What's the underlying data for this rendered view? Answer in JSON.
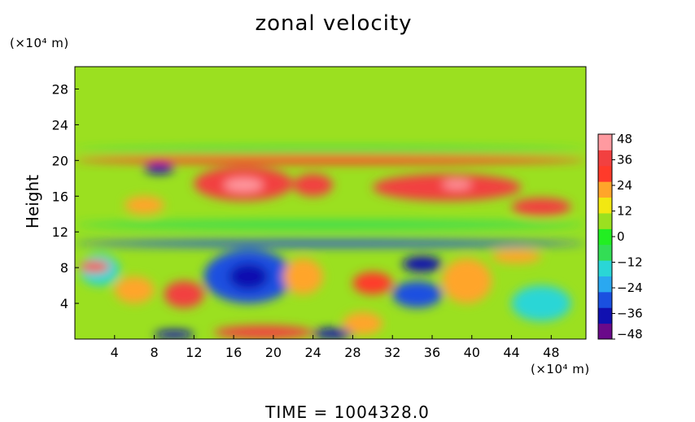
{
  "chart_data": {
    "type": "heatmap",
    "title": "zonal velocity",
    "ylabel": "Height",
    "x_unit": "(×10⁴ m)",
    "y_unit": "(×10⁴ m)",
    "footer": "TIME  =  1004328.0",
    "xlim": [
      0,
      51.5
    ],
    "ylim": [
      0,
      30.5
    ],
    "x_ticks": [
      4,
      8,
      12,
      16,
      20,
      24,
      28,
      32,
      36,
      40,
      44,
      48
    ],
    "y_ticks": [
      4,
      8,
      12,
      16,
      20,
      24,
      28
    ],
    "colorbar": {
      "min": -48,
      "max": 48,
      "tick_values": [
        48,
        36,
        24,
        12,
        0,
        -12,
        -24,
        -36,
        -48
      ],
      "tick_labels": [
        "48",
        "36",
        "24",
        "12",
        "0",
        "−12",
        "−24",
        "−36",
        "−48"
      ],
      "colors": [
        "#6a0a8a",
        "#1010b0",
        "#1a50e0",
        "#2aa8f0",
        "#2ad6d6",
        "#33dd55",
        "#22ee22",
        "#9be020",
        "#f2e811",
        "#ffa52a",
        "#ff3a2a",
        "#f24040",
        "#ff9aa0"
      ]
    },
    "features": [
      {
        "x": 0,
        "y": 20.8,
        "w": 51.5,
        "h": 0.7,
        "v": -10
      },
      {
        "x": 0,
        "y": 19.6,
        "w": 51.5,
        "h": 1.0,
        "v": 30
      },
      {
        "x": 0,
        "y": 10.3,
        "w": 51.5,
        "h": 0.8,
        "v": -28
      },
      {
        "x": 0,
        "y": 12.3,
        "w": 51.5,
        "h": 1.0,
        "v": -8
      },
      {
        "x": 12,
        "y": 15.5,
        "w": 10,
        "h": 3.8,
        "v": 38
      },
      {
        "x": 15,
        "y": 16.5,
        "w": 4,
        "h": 1.5,
        "v": 48
      },
      {
        "x": 22,
        "y": 16,
        "w": 4,
        "h": 2.5,
        "v": 36
      },
      {
        "x": 30,
        "y": 15.5,
        "w": 15,
        "h": 3,
        "v": 34
      },
      {
        "x": 37,
        "y": 16.8,
        "w": 3,
        "h": 1,
        "v": 44
      },
      {
        "x": 44,
        "y": 13.8,
        "w": 6,
        "h": 2,
        "v": 34
      },
      {
        "x": 7,
        "y": 18.5,
        "w": 3,
        "h": 1.2,
        "v": -40
      },
      {
        "x": 5,
        "y": 14,
        "w": 4,
        "h": 2,
        "v": 20
      },
      {
        "x": 13,
        "y": 4,
        "w": 9,
        "h": 6,
        "v": -30
      },
      {
        "x": 15.5,
        "y": 5.5,
        "w": 4,
        "h": 3,
        "v": -38
      },
      {
        "x": 9,
        "y": 3.5,
        "w": 4,
        "h": 3,
        "v": 36
      },
      {
        "x": 14,
        "y": 0,
        "w": 10,
        "h": 1.5,
        "v": 40
      },
      {
        "x": 24,
        "y": 0,
        "w": 4,
        "h": 1.2,
        "v": -40
      },
      {
        "x": 8,
        "y": 0,
        "w": 4,
        "h": 1,
        "v": -34
      },
      {
        "x": 32,
        "y": 3.5,
        "w": 5,
        "h": 3,
        "v": -28
      },
      {
        "x": 33,
        "y": 7.5,
        "w": 4,
        "h": 1.8,
        "v": -34
      },
      {
        "x": 0.5,
        "y": 6,
        "w": 4,
        "h": 3.5,
        "v": -18
      },
      {
        "x": 0.5,
        "y": 7.5,
        "w": 3,
        "h": 1.2,
        "v": 26
      },
      {
        "x": 4,
        "y": 4,
        "w": 4,
        "h": 3,
        "v": 24
      },
      {
        "x": 28,
        "y": 5,
        "w": 4,
        "h": 2.5,
        "v": 26
      },
      {
        "x": 37,
        "y": 4,
        "w": 5,
        "h": 5,
        "v": 24
      },
      {
        "x": 44,
        "y": 2,
        "w": 6,
        "h": 4,
        "v": -14
      },
      {
        "x": 27,
        "y": 0.5,
        "w": 4,
        "h": 2.5,
        "v": 22
      },
      {
        "x": 21,
        "y": 5,
        "w": 4,
        "h": 4,
        "v": 20
      },
      {
        "x": 42,
        "y": 8.5,
        "w": 5,
        "h": 1.5,
        "v": 22
      }
    ]
  }
}
